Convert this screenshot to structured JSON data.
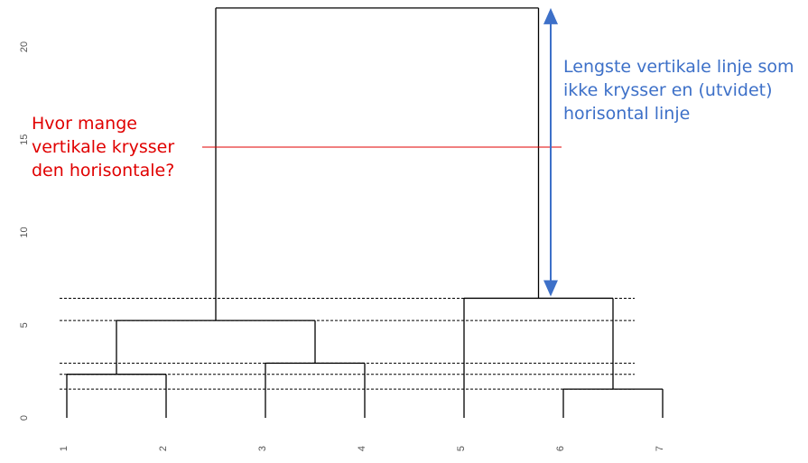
{
  "chart_data": {
    "type": "dendrogram",
    "title": "",
    "xlabel": "",
    "ylabel": "",
    "ylim": [
      0,
      22
    ],
    "y_ticks": [
      "0",
      "5",
      "10",
      "15",
      "20"
    ],
    "leaves": [
      "1",
      "2",
      "3",
      "4",
      "5",
      "6",
      "7"
    ],
    "merges": [
      {
        "left": 6,
        "right": 7,
        "height": 1.55
      },
      {
        "left": 1,
        "right": 2,
        "height": 2.35
      },
      {
        "left": 3,
        "right": 4,
        "height": 2.95
      },
      {
        "left": "1-2",
        "right": "3-4",
        "height": 5.25
      },
      {
        "left": 5,
        "right": "6-7",
        "height": 6.45
      },
      {
        "left": "1-4",
        "right": "5-7",
        "height": 22.1
      }
    ],
    "dashed_levels": [
      1.55,
      2.35,
      2.95,
      5.25,
      6.45
    ],
    "cut_line": {
      "height": 14.6,
      "color": "#e00000"
    },
    "span_arrow": {
      "from": 6.45,
      "to": 22.1,
      "color": "#3d70c8"
    }
  },
  "annotations": {
    "question": "Hvor mange\nvertikale krysser\nden horisontale?",
    "longest": "Lengste vertikale linje som\nikke krysser en (utvidet)\nhorisontal linje"
  },
  "colors": {
    "tree": "#000000",
    "dashed": "#000000",
    "question_text": "#e00000",
    "longest_text": "#3d70c8"
  }
}
